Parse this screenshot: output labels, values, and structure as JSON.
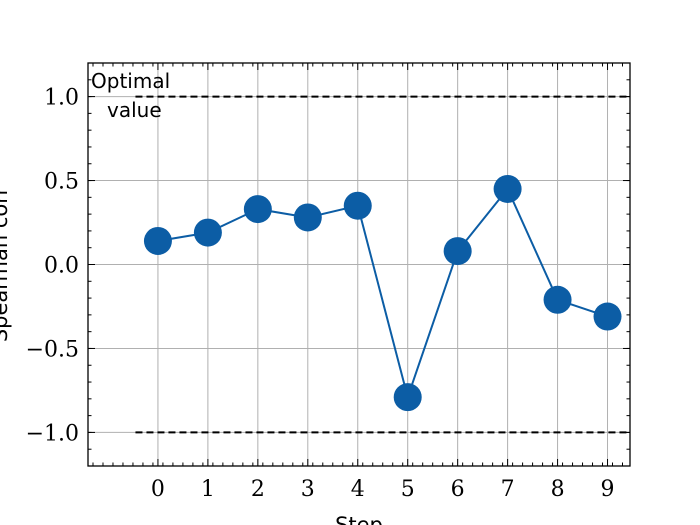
{
  "chart_data": {
    "type": "line",
    "x": [
      0,
      1,
      2,
      3,
      4,
      5,
      6,
      7,
      8,
      9
    ],
    "series": [
      {
        "values": [
          0.14,
          0.19,
          0.33,
          0.28,
          0.35,
          -0.79,
          0.08,
          0.45,
          -0.21,
          -0.31
        ]
      }
    ],
    "reference_lines": [
      1.0,
      -1.0
    ],
    "annotation": {
      "line1": "Optimal",
      "line2": "value"
    },
    "xlabel": "Step",
    "ylabel": "Spearman corr",
    "xlim": [
      -1.4,
      9.45
    ],
    "ylim": [
      -1.2,
      1.2
    ],
    "xticks": [
      "0",
      "1",
      "2",
      "3",
      "4",
      "5",
      "6",
      "7",
      "8",
      "9"
    ],
    "yticks": [
      "1.0",
      "0.5",
      "0.0",
      "−0.5",
      "−1.0"
    ],
    "ytick_values": [
      1.0,
      0.5,
      0.0,
      -0.5,
      -1.0
    ],
    "grid": true,
    "colors": {
      "series": "#0c5da5",
      "reference": "#000000",
      "grid": "#b0b0b0"
    }
  }
}
